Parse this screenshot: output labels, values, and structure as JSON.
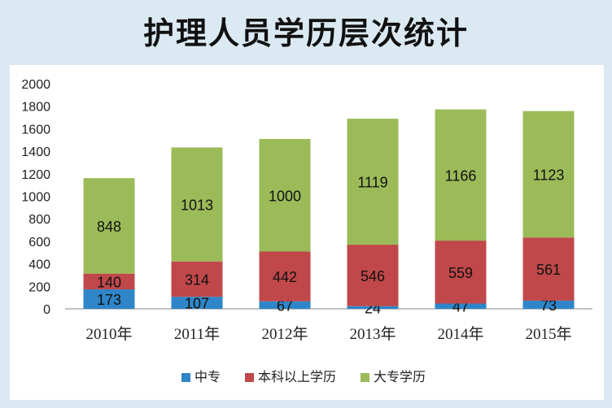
{
  "title": "护理人员学历层次统计",
  "colors": {
    "zhongzhuan": "#2e86c8",
    "benke": "#c0484a",
    "dazhuan": "#9bbb59",
    "background": "#dbe9f3"
  },
  "chart_data": {
    "type": "bar",
    "stacked": true,
    "categories": [
      "2010年",
      "2011年",
      "2012年",
      "2013年",
      "2014年",
      "2015年"
    ],
    "series": [
      {
        "name": "中专",
        "values": [
          173,
          107,
          67,
          24,
          47,
          73
        ]
      },
      {
        "name": "本科以上学历",
        "values": [
          140,
          314,
          442,
          546,
          559,
          561
        ]
      },
      {
        "name": "大专学历",
        "values": [
          848,
          1013,
          1000,
          1119,
          1166,
          1123
        ]
      }
    ],
    "ylim": [
      0,
      2000
    ],
    "yticks": [
      0,
      200,
      400,
      600,
      800,
      1000,
      1200,
      1400,
      1600,
      1800,
      2000
    ],
    "grid": false,
    "legend": "bottom",
    "data_labels": true
  }
}
